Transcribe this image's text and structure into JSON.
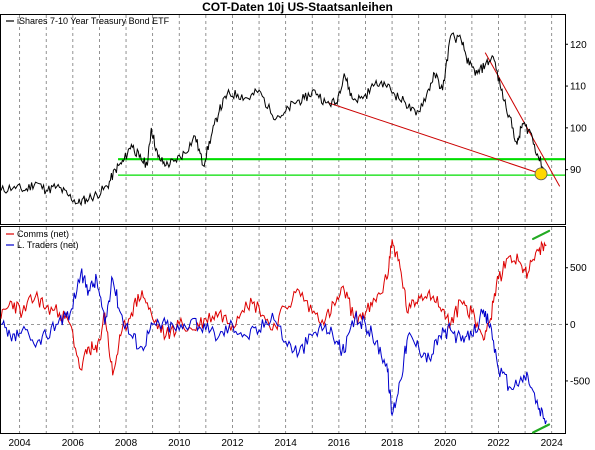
{
  "title": "COT-Daten 10j US-Staatsanleihen",
  "colors": {
    "price": "#000000",
    "comms": "#dd0000",
    "ltraders": "#0000cc",
    "support": "#00dd00",
    "trendline": "#cc0000",
    "marker": "#ffd800",
    "markerMark": "#22aa22"
  },
  "chart_data": [
    {
      "type": "line",
      "panel": "top",
      "legend": [
        "iShares 7-10 Year Treasury Bond ETF"
      ],
      "legend_position": "top-left",
      "ylim": [
        77,
        127
      ],
      "yticks": [
        "90",
        "100",
        "110",
        "120"
      ],
      "xlim": [
        2003.3,
        2024.5
      ],
      "series": [
        {
          "name": "iShares 7-10 Year Treasury Bond ETF",
          "x": [
            2003.3,
            2003.8,
            2004.2,
            2004.6,
            2005.0,
            2005.4,
            2005.8,
            2006.2,
            2006.5,
            2006.9,
            2007.3,
            2007.6,
            2007.9,
            2008.2,
            2008.5,
            2008.8,
            2008.95,
            2009.2,
            2009.5,
            2009.8,
            2010.2,
            2010.6,
            2010.9,
            2011.2,
            2011.5,
            2011.8,
            2012.2,
            2012.6,
            2013.0,
            2013.5,
            2013.9,
            2014.3,
            2014.7,
            2015.1,
            2015.5,
            2015.9,
            2016.2,
            2016.5,
            2016.9,
            2017.3,
            2017.7,
            2018.1,
            2018.5,
            2018.9,
            2019.3,
            2019.6,
            2019.9,
            2020.2,
            2020.6,
            2020.9,
            2021.2,
            2021.5,
            2021.8,
            2022.1,
            2022.4,
            2022.7,
            2022.9,
            2023.2,
            2023.5,
            2023.8
          ],
          "values": [
            85,
            86,
            85,
            87,
            85,
            86,
            84,
            82,
            83,
            84,
            86,
            90,
            92,
            96,
            93,
            91,
            100,
            93,
            91,
            92,
            94,
            98,
            91,
            98,
            104,
            108,
            108,
            107,
            109,
            103,
            103,
            106,
            107,
            109,
            106,
            106,
            113,
            107,
            107,
            110,
            111,
            108,
            106,
            103,
            108,
            113,
            109,
            122,
            121,
            115,
            113,
            115,
            117,
            109,
            103,
            96,
            101,
            99,
            93,
            89
          ]
        }
      ],
      "hlines": [
        {
          "y": 92.5
        },
        {
          "y": 88.7
        }
      ],
      "trendlines": [
        {
          "x": [
            2015.6,
            2023.6
          ],
          "y": [
            106,
            89
          ]
        },
        {
          "x": [
            2021.5,
            2024.3
          ],
          "y": [
            118,
            86
          ]
        }
      ],
      "marker_point": {
        "x": 2023.6,
        "y": 89
      }
    },
    {
      "type": "line",
      "panel": "bottom",
      "legend": [
        "Comms (net)",
        "L. Traders (net)"
      ],
      "legend_position": "top-left",
      "ylim": [
        -960,
        860
      ],
      "yticks": [
        "-500",
        "0",
        "500"
      ],
      "ytick_values": [
        -500,
        0,
        500
      ],
      "xlim": [
        2003.3,
        2024.5
      ],
      "xticks": [
        "2004",
        "2006",
        "2008",
        "2010",
        "2012",
        "2014",
        "2016",
        "2018",
        "2020",
        "2022",
        "2024"
      ],
      "xtick_values": [
        2004,
        2006,
        2008,
        2010,
        2012,
        2014,
        2016,
        2018,
        2020,
        2022,
        2024
      ],
      "series": [
        {
          "name": "Comms (net)",
          "x": [
            2003.3,
            2003.7,
            2004.1,
            2004.6,
            2005.0,
            2005.5,
            2005.9,
            2006.3,
            2006.6,
            2006.9,
            2007.2,
            2007.5,
            2007.8,
            2008.2,
            2008.6,
            2009.0,
            2009.5,
            2010.0,
            2010.5,
            2011.0,
            2011.5,
            2012.0,
            2012.5,
            2013.0,
            2013.5,
            2014.0,
            2014.5,
            2015.0,
            2015.5,
            2015.9,
            2016.2,
            2016.6,
            2017.0,
            2017.4,
            2017.8,
            2018.0,
            2018.3,
            2018.6,
            2019.0,
            2019.4,
            2019.8,
            2020.2,
            2020.6,
            2021.0,
            2021.4,
            2021.7,
            2022.0,
            2022.4,
            2022.8,
            2023.1,
            2023.5,
            2023.8
          ],
          "values": [
            50,
            200,
            100,
            250,
            150,
            100,
            0,
            -400,
            -200,
            -250,
            100,
            -450,
            -100,
            100,
            300,
            50,
            -100,
            0,
            -50,
            50,
            100,
            0,
            200,
            150,
            -50,
            150,
            300,
            100,
            50,
            200,
            300,
            50,
            100,
            200,
            400,
            750,
            500,
            100,
            250,
            300,
            150,
            0,
            200,
            100,
            -100,
            50,
            400,
            600,
            550,
            450,
            650,
            700
          ]
        },
        {
          "name": "L. Traders (net)",
          "x": [
            2003.3,
            2003.7,
            2004.1,
            2004.6,
            2005.0,
            2005.5,
            2005.9,
            2006.3,
            2006.6,
            2006.9,
            2007.2,
            2007.5,
            2007.8,
            2008.2,
            2008.6,
            2009.0,
            2009.5,
            2010.0,
            2010.5,
            2011.0,
            2011.5,
            2012.0,
            2012.5,
            2013.0,
            2013.5,
            2014.0,
            2014.5,
            2015.0,
            2015.5,
            2015.9,
            2016.2,
            2016.6,
            2017.0,
            2017.4,
            2017.8,
            2018.0,
            2018.3,
            2018.6,
            2019.0,
            2019.4,
            2019.8,
            2020.2,
            2020.6,
            2021.0,
            2021.4,
            2021.7,
            2022.0,
            2022.4,
            2022.8,
            2023.1,
            2023.5,
            2023.8
          ],
          "values": [
            0,
            -150,
            -50,
            -200,
            -100,
            50,
            100,
            450,
            300,
            400,
            0,
            400,
            100,
            -100,
            -200,
            0,
            0,
            -50,
            50,
            -50,
            -100,
            0,
            -100,
            -50,
            100,
            -150,
            -250,
            -100,
            0,
            -150,
            -250,
            50,
            0,
            -150,
            -350,
            -800,
            -500,
            -100,
            -200,
            -300,
            -100,
            -50,
            -150,
            -100,
            100,
            0,
            -400,
            -550,
            -500,
            -450,
            -750,
            -850
          ]
        }
      ],
      "marker_ticks": [
        {
          "x": 2023.6,
          "y": 790
        },
        {
          "x": 2023.6,
          "y": -920
        }
      ]
    }
  ]
}
